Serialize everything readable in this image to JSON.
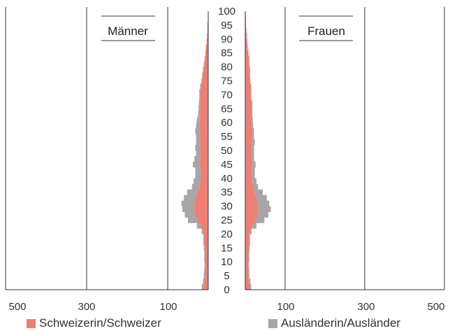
{
  "chart_data": {
    "type": "bar",
    "orientation": "horizontal-population-pyramid",
    "panels": [
      {
        "title": "Männer"
      },
      {
        "title": "Frauen"
      }
    ],
    "x_ticks": [
      "500",
      "300",
      "100"
    ],
    "age_ticks": [
      "0",
      "5",
      "10",
      "15",
      "20",
      "25",
      "30",
      "35",
      "40",
      "45",
      "50",
      "55",
      "60",
      "65",
      "70",
      "75",
      "80",
      "85",
      "90",
      "95",
      "100"
    ],
    "xlim": [
      0,
      500
    ],
    "age_range": [
      0,
      100
    ],
    "grid": "vertical lines at 100, 300, 500",
    "colors": {
      "swiss": "#ef7e73",
      "foreign": "#a6a6a6"
    },
    "legend_position": "bottom",
    "series": [
      {
        "name": "Schweizerin/Schweizer",
        "key": "swiss"
      },
      {
        "name": "Ausländerin/Ausländer",
        "key": "foreign"
      }
    ],
    "ages": [
      0,
      2,
      4,
      6,
      8,
      10,
      12,
      14,
      16,
      18,
      20,
      22,
      24,
      26,
      28,
      30,
      32,
      34,
      36,
      38,
      40,
      42,
      44,
      46,
      48,
      50,
      52,
      54,
      56,
      58,
      60,
      62,
      64,
      66,
      68,
      70,
      72,
      74,
      76,
      78,
      80,
      82,
      84,
      86,
      88,
      90,
      92,
      94,
      96,
      98,
      100
    ],
    "men_swiss": [
      12,
      10,
      8,
      8,
      7,
      8,
      8,
      9,
      10,
      10,
      12,
      18,
      28,
      32,
      34,
      34,
      32,
      28,
      22,
      20,
      18,
      18,
      22,
      20,
      18,
      20,
      20,
      20,
      22,
      22,
      22,
      20,
      20,
      20,
      20,
      20,
      18,
      16,
      14,
      12,
      10,
      8,
      7,
      6,
      4,
      3,
      2,
      2,
      1,
      1,
      0
    ],
    "men_foreign": [
      4,
      3,
      3,
      2,
      2,
      2,
      2,
      2,
      2,
      2,
      4,
      10,
      22,
      26,
      30,
      32,
      28,
      24,
      18,
      16,
      14,
      14,
      16,
      14,
      12,
      12,
      10,
      10,
      10,
      8,
      6,
      5,
      4,
      3,
      2,
      2,
      2,
      1,
      1,
      1,
      1,
      1,
      0,
      0,
      0,
      0,
      0,
      0,
      0,
      0,
      0
    ],
    "women_swiss": [
      12,
      10,
      8,
      8,
      7,
      8,
      8,
      9,
      10,
      10,
      12,
      18,
      26,
      30,
      32,
      30,
      28,
      24,
      20,
      18,
      16,
      16,
      18,
      16,
      16,
      16,
      18,
      18,
      18,
      16,
      16,
      16,
      16,
      16,
      14,
      14,
      14,
      12,
      12,
      12,
      10,
      10,
      8,
      6,
      5,
      4,
      3,
      2,
      2,
      1,
      0
    ],
    "women_foreign": [
      3,
      3,
      2,
      2,
      2,
      2,
      2,
      2,
      2,
      2,
      4,
      10,
      22,
      28,
      32,
      30,
      26,
      20,
      12,
      10,
      8,
      8,
      8,
      6,
      6,
      6,
      6,
      4,
      4,
      4,
      3,
      2,
      2,
      2,
      1,
      1,
      1,
      1,
      0,
      0,
      0,
      0,
      0,
      0,
      0,
      0,
      0,
      0,
      0,
      0,
      0
    ]
  }
}
